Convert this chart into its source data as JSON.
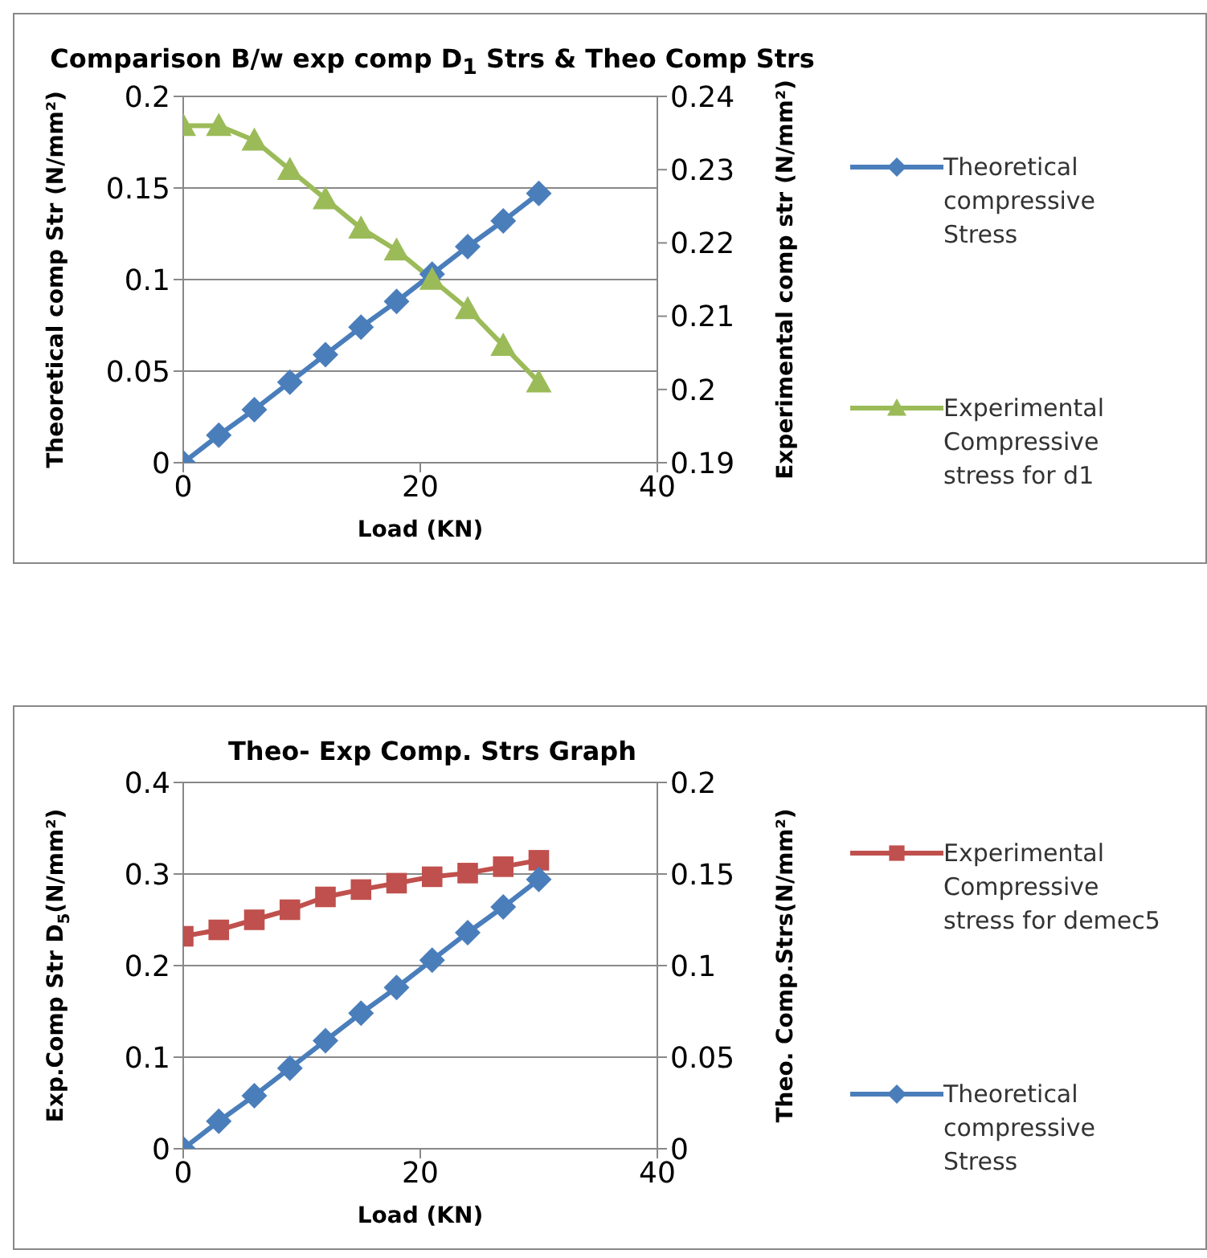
{
  "chart_data": [
    {
      "type": "line",
      "title": "Comparison B/w exp comp D$_{1}$ Strs & Theo Comp Strs",
      "xlabel": "Load (KN)",
      "ylabel": "Theoretical comp Str (N/mm²)",
      "y2label": "Experimental comp str (N/mm²)",
      "x": [
        0,
        3,
        6,
        9,
        12,
        15,
        18,
        21,
        24,
        27,
        30
      ],
      "xlim": [
        0,
        40
      ],
      "xticks": [
        0,
        20,
        40
      ],
      "ylim": [
        0,
        0.2
      ],
      "yticks": [
        0,
        0.05,
        0.1,
        0.15,
        0.2
      ],
      "y2lim": [
        0.19,
        0.24
      ],
      "y2ticks": [
        0.19,
        0.2,
        0.21,
        0.22,
        0.23,
        0.24
      ],
      "grid": "y",
      "legend": "right",
      "series": [
        {
          "name": "Theoretical compressive Stress",
          "color": "#4a7ebb",
          "marker": "diamond",
          "values": [
            0,
            0.015,
            0.029,
            0.044,
            0.059,
            0.074,
            0.088,
            0.103,
            0.118,
            0.132,
            0.147
          ]
        },
        {
          "name": "Experimental Compressive stress for d1",
          "color": "#9bbb59",
          "marker": "triangle",
          "axis": "y2",
          "values": [
            0.236,
            0.236,
            0.234,
            0.23,
            0.226,
            0.222,
            0.219,
            0.215,
            0.211,
            0.206,
            0.201
          ]
        }
      ]
    },
    {
      "type": "line",
      "title": "Theo- Exp Comp. Strs Graph",
      "xlabel": "Load (KN)",
      "ylabel": "Exp.Comp Str  D$_{5}$(N/mm²)",
      "y2label": "Theo. Comp.Strs(N/mm²)",
      "x": [
        0,
        3,
        6,
        9,
        12,
        15,
        18,
        21,
        24,
        27,
        30
      ],
      "xlim": [
        0,
        40
      ],
      "xticks": [
        0,
        20,
        40
      ],
      "ylim": [
        0,
        0.4
      ],
      "yticks": [
        0,
        0.1,
        0.2,
        0.3,
        0.4
      ],
      "y2lim": [
        0,
        0.2
      ],
      "y2ticks": [
        0,
        0.05,
        0.1,
        0.15,
        0.2
      ],
      "grid": "y",
      "legend": "right",
      "series": [
        {
          "name": "Experimental Compressive stress for demec5",
          "color": "#c0504d",
          "marker": "square",
          "values": [
            0.232,
            0.239,
            0.25,
            0.261,
            0.275,
            0.283,
            0.29,
            0.297,
            0.301,
            0.308,
            0.315
          ]
        },
        {
          "name": "Theoretical compressive Stress",
          "color": "#4a7ebb",
          "marker": "diamond",
          "axis": "y2",
          "values": [
            0,
            0.015,
            0.029,
            0.044,
            0.059,
            0.074,
            0.088,
            0.103,
            0.118,
            0.132,
            0.147
          ]
        }
      ]
    }
  ]
}
